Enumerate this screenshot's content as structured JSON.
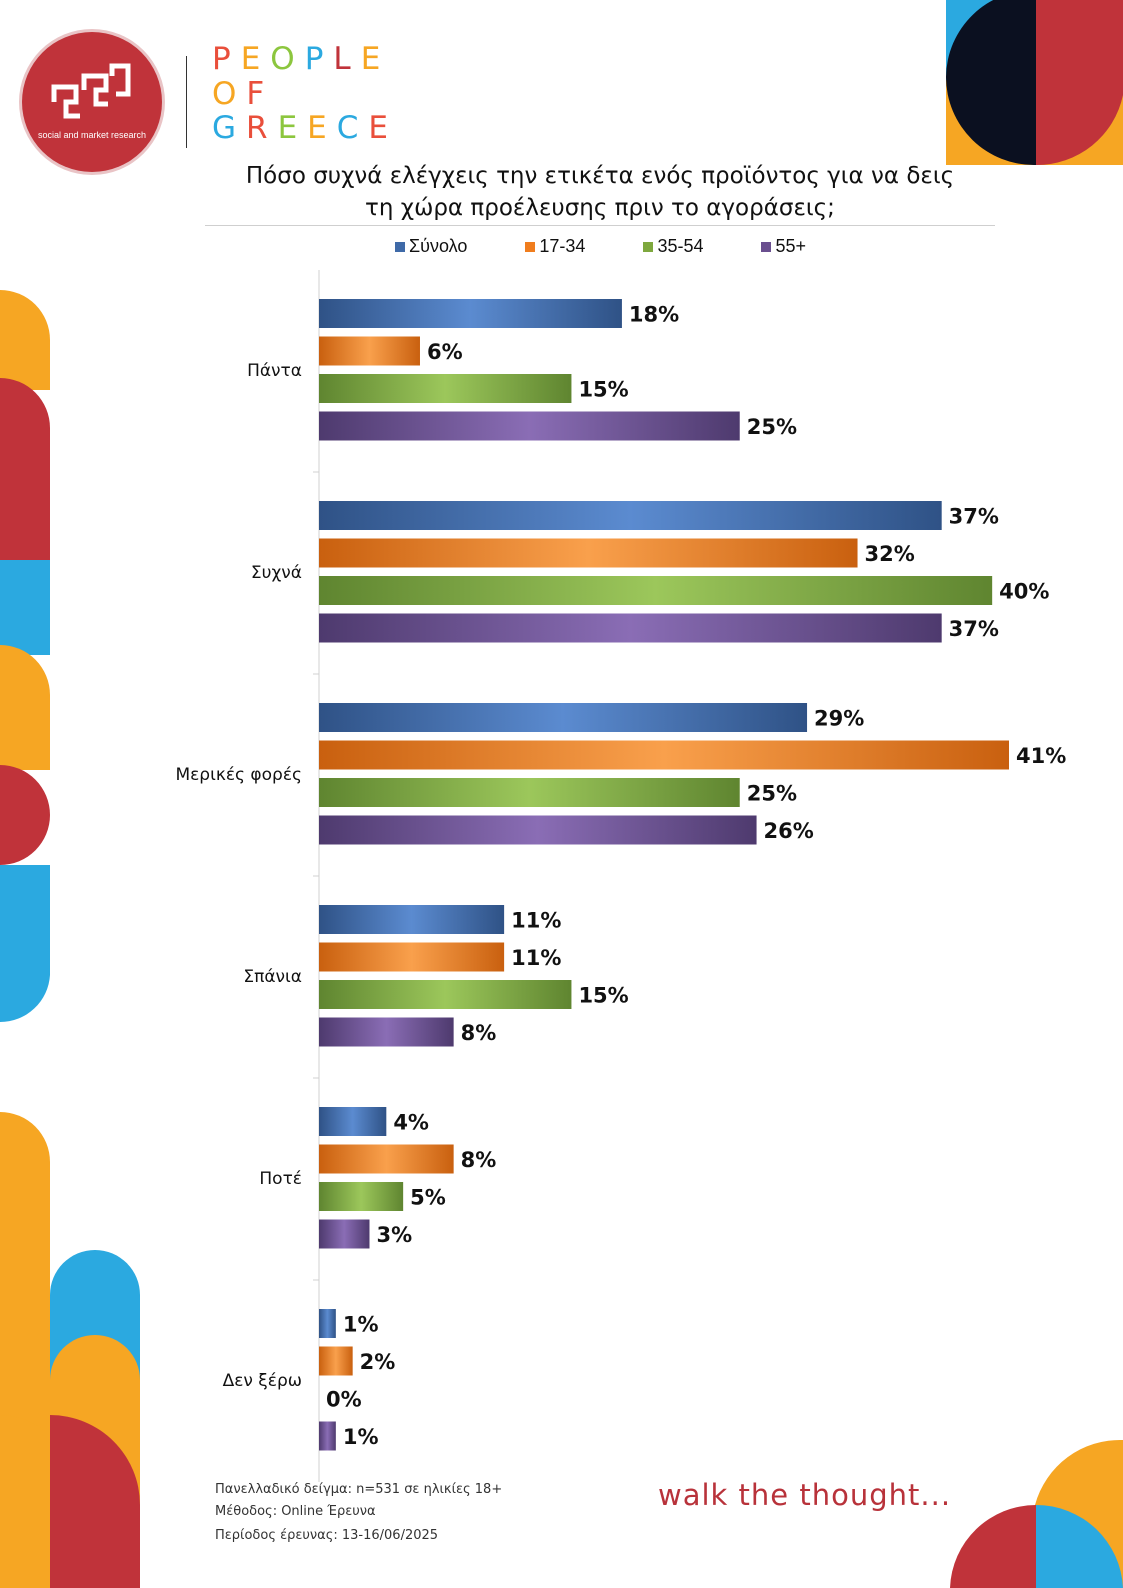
{
  "brand": {
    "logo_glyph": "ꗃ",
    "logo_subtitle": "social and market research",
    "people_of_greece": [
      {
        "letters": [
          "P",
          "E",
          "O",
          "P",
          "L",
          "E"
        ],
        "colors": [
          "#e94f3b",
          "#f6a623",
          "#8cc63e",
          "#2ba9e0",
          "#c0333a",
          "#f6a623"
        ]
      },
      {
        "letters": [
          "O",
          "F"
        ],
        "colors": [
          "#f6a623",
          "#e94f3b"
        ]
      },
      {
        "letters": [
          "G",
          "R",
          "E",
          "E",
          "C",
          "E"
        ],
        "colors": [
          "#2ba9e0",
          "#e94f3b",
          "#8cc63e",
          "#f6a623",
          "#2ba9e0",
          "#e94f3b"
        ]
      }
    ]
  },
  "title_line1": "Πόσο συχνά ελέγχεις την ετικέτα ενός προϊόντος για να δεις",
  "title_line2": "τη χώρα προέλευσης πριν το αγοράσεις;",
  "legend": [
    {
      "label": "Σύνολο",
      "color": "#3f6aa8"
    },
    {
      "label": "17-34",
      "color": "#f07d1e"
    },
    {
      "label": "35-54",
      "color": "#7ea83e"
    },
    {
      "label": "55+",
      "color": "#6a4f8f"
    }
  ],
  "chart_data": {
    "type": "bar",
    "orientation": "horizontal",
    "categories": [
      "Πάντα",
      "Συχνά",
      "Μερικές φορές",
      "Σπάνια",
      "Ποτέ",
      "Δεν ξέρω"
    ],
    "series": [
      {
        "name": "Σύνολο",
        "values": [
          18,
          37,
          29,
          11,
          4,
          1
        ],
        "labels": [
          "18%",
          "37%",
          "29%",
          "11%",
          "4%",
          "1%"
        ]
      },
      {
        "name": "17-34",
        "values": [
          6,
          32,
          41,
          11,
          8,
          2
        ],
        "labels": [
          "6%",
          "32%",
          "41%",
          "11%",
          "8%",
          "2%"
        ]
      },
      {
        "name": "35-54",
        "values": [
          15,
          40,
          25,
          15,
          5,
          0
        ],
        "labels": [
          "15%",
          "40%",
          "25%",
          "15%",
          "5%",
          "0%"
        ]
      },
      {
        "name": "55+",
        "values": [
          25,
          37,
          26,
          8,
          3,
          1
        ],
        "labels": [
          "25%",
          "37%",
          "26%",
          "8%",
          "3%",
          "1%"
        ]
      }
    ],
    "xlim": [
      0,
      41
    ],
    "grid": false,
    "legend_position": "top"
  },
  "footnotes": [
    "Πανελλαδικό δείγμα: n=531 σε ηλικίες 18+",
    "Μέθοδος: Online Έρευνα",
    "Περίοδος έρευνας:  13-16/06/2025"
  ],
  "tagline": "walk the thought..."
}
